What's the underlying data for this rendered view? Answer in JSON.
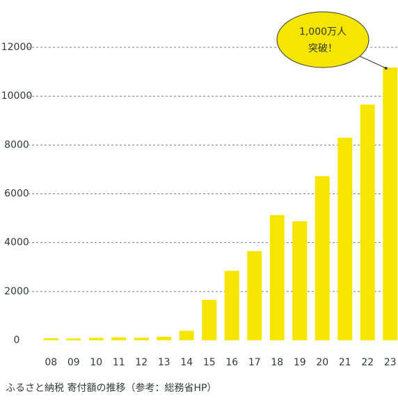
{
  "chart_data": {
    "type": "bar",
    "caption": "ふるさと納税 寄付額の推移（参考：総務省HP）",
    "annotation": [
      "1,000万人",
      "突破！"
    ],
    "categories": [
      "08",
      "09",
      "10",
      "11",
      "12",
      "13",
      "14",
      "15",
      "16",
      "17",
      "18",
      "19",
      "20",
      "21",
      "22",
      "23"
    ],
    "values": [
      81,
      77,
      102,
      122,
      104,
      146,
      389,
      1653,
      2844,
      3653,
      5127,
      4875,
      6725,
      8302,
      9654,
      11175
    ],
    "color": "#f6e500",
    "ylim": [
      0,
      12600
    ],
    "yticks": [
      0,
      2000,
      4000,
      6000,
      8000,
      10000,
      12000
    ],
    "grid": true
  }
}
